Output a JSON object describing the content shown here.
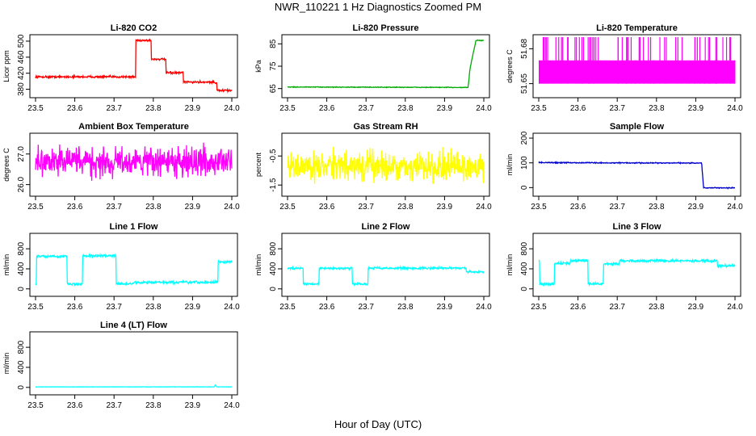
{
  "figure": {
    "title": "NWR_110221  1 Hz Diagnostics Zoomed PM",
    "xlabel": "Hour of Day (UTC)"
  },
  "chart_data": [
    {
      "type": "line",
      "title": "Li-820 CO2",
      "ylabel": "Licor ppm",
      "color": "#ff0000",
      "xlim": [
        23.5,
        24.0
      ],
      "ylim": [
        365,
        510
      ],
      "xticks": [
        "23.5",
        "23.6",
        "23.7",
        "23.8",
        "23.9",
        "24.0"
      ],
      "yticks": [
        {
          "v": 380,
          "t": "380"
        },
        {
          "v": 420,
          "t": "420"
        },
        {
          "v": 460,
          "t": "460"
        },
        {
          "v": 500,
          "t": "500"
        }
      ],
      "series": [
        {
          "x": [
            23.5,
            23.755,
            23.755,
            23.795,
            23.795,
            23.832,
            23.832,
            23.876,
            23.876,
            23.955,
            23.955,
            23.962,
            23.962,
            24.0
          ],
          "y": [
            411,
            411,
            502,
            502,
            455,
            455,
            421,
            421,
            398,
            398,
            396,
            396,
            377,
            377
          ]
        }
      ],
      "noise": 1.5
    },
    {
      "type": "line",
      "title": "Li-820 Pressure",
      "ylabel": "kPa",
      "color": "#00aa00",
      "xlim": [
        23.5,
        24.0
      ],
      "ylim": [
        62,
        88
      ],
      "xticks": [
        "23.5",
        "23.6",
        "23.7",
        "23.8",
        "23.9",
        "24.0"
      ],
      "yticks": [
        {
          "v": 65,
          "t": "65"
        },
        {
          "v": 75,
          "t": "75"
        },
        {
          "v": 85,
          "t": "85"
        }
      ],
      "series": [
        {
          "x": [
            23.5,
            23.955,
            23.96,
            23.965,
            23.972,
            23.98,
            24.0
          ],
          "y": [
            65.7,
            65.5,
            65.5,
            74,
            80,
            86.5,
            86.5
          ]
        }
      ],
      "noise": 0.1
    },
    {
      "type": "line",
      "title": "Li-820 Temperature",
      "ylabel": "degrees C",
      "color": "#ff00ff",
      "xlim": [
        23.5,
        24.0
      ],
      "ylim": [
        51.64,
        51.69
      ],
      "xticks": [
        "23.5",
        "23.6",
        "23.7",
        "23.8",
        "23.9",
        "24.0"
      ],
      "yticks": [
        {
          "v": 51.65,
          "t": "51.65"
        },
        {
          "v": 51.68,
          "t": "51.68"
        }
      ],
      "series": [
        {
          "x": [
            23.5,
            24.0
          ],
          "y": [
            51.67,
            51.67
          ]
        }
      ],
      "binary": {
        "low": 51.65,
        "high": 51.67,
        "top": 51.69
      }
    },
    {
      "type": "line",
      "title": "Ambient Box Temperature",
      "ylabel": "degrees C",
      "color": "#ff00ff",
      "xlim": [
        23.5,
        24.0
      ],
      "ylim": [
        25.7,
        27.6
      ],
      "xticks": [
        "23.5",
        "23.6",
        "23.7",
        "23.8",
        "23.9",
        "24.0"
      ],
      "yticks": [
        {
          "v": 26.0,
          "t": "26.0"
        },
        {
          "v": 27.0,
          "t": "27.0"
        }
      ],
      "series": [
        {
          "x": [
            23.5,
            24.0
          ],
          "y": [
            26.75,
            26.75
          ]
        }
      ],
      "noise": 0.3
    },
    {
      "type": "line",
      "title": "Gas Stream RH",
      "ylabel": "percent",
      "color": "#ffff00",
      "xlim": [
        23.5,
        24.0
      ],
      "ylim": [
        -1.8,
        0.2
      ],
      "xticks": [
        "23.5",
        "23.6",
        "23.7",
        "23.8",
        "23.9",
        "24.0"
      ],
      "yticks": [
        {
          "v": -1.5,
          "t": "-1.5"
        },
        {
          "v": -0.5,
          "t": "-0.5"
        }
      ],
      "series": [
        {
          "x": [
            23.5,
            24.0
          ],
          "y": [
            -0.85,
            -0.85
          ]
        }
      ],
      "noise": 0.3
    },
    {
      "type": "line",
      "title": "Sample Flow",
      "ylabel": "ml/min",
      "color": "#0000cc",
      "xlim": [
        23.5,
        24.0
      ],
      "ylim": [
        -25,
        210
      ],
      "xticks": [
        "23.5",
        "23.6",
        "23.7",
        "23.8",
        "23.9",
        "24.0"
      ],
      "yticks": [
        {
          "v": 0,
          "t": "0"
        },
        {
          "v": 100,
          "t": "100"
        },
        {
          "v": 200,
          "t": "200"
        }
      ],
      "series": [
        {
          "x": [
            23.5,
            23.915,
            23.92,
            24.0
          ],
          "y": [
            101,
            99,
            -1,
            -1
          ]
        }
      ],
      "noise": 1.2
    },
    {
      "type": "line",
      "title": "Line 1 Flow",
      "ylabel": "ml/min",
      "color": "#00ffff",
      "xlim": [
        23.5,
        24.0
      ],
      "ylim": [
        -100,
        1060
      ],
      "xticks": [
        "23.5",
        "23.6",
        "23.7",
        "23.8",
        "23.9",
        "24.0"
      ],
      "yticks": [
        {
          "v": 0,
          "t": "0"
        },
        {
          "v": 400,
          "t": "400"
        },
        {
          "v": 800,
          "t": "800"
        }
      ],
      "series": [
        {
          "x": [
            23.5,
            23.502,
            23.502,
            23.58,
            23.58,
            23.62,
            23.62,
            23.705,
            23.705,
            23.75,
            23.75,
            23.955,
            23.955,
            23.965,
            23.965,
            24.0
          ],
          "y": [
            100,
            100,
            650,
            650,
            100,
            100,
            660,
            660,
            100,
            100,
            130,
            130,
            140,
            140,
            540,
            540
          ]
        }
      ],
      "noise": 15
    },
    {
      "type": "line",
      "title": "Line 2 Flow",
      "ylabel": "ml/min",
      "color": "#00ffff",
      "xlim": [
        23.5,
        24.0
      ],
      "ylim": [
        -100,
        1060
      ],
      "xticks": [
        "23.5",
        "23.6",
        "23.7",
        "23.8",
        "23.9",
        "24.0"
      ],
      "yticks": [
        {
          "v": 0,
          "t": "0"
        },
        {
          "v": 400,
          "t": "400"
        },
        {
          "v": 800,
          "t": "800"
        }
      ],
      "series": [
        {
          "x": [
            23.5,
            23.54,
            23.54,
            23.58,
            23.58,
            23.665,
            23.665,
            23.705,
            23.705,
            23.955,
            23.955,
            24.0
          ],
          "y": [
            410,
            410,
            100,
            100,
            410,
            410,
            100,
            100,
            415,
            415,
            340,
            340
          ]
        }
      ],
      "noise": 12
    },
    {
      "type": "line",
      "title": "Line 3 Flow",
      "ylabel": "ml/min",
      "color": "#00ffff",
      "xlim": [
        23.5,
        24.0
      ],
      "ylim": [
        -100,
        1060
      ],
      "xticks": [
        "23.5",
        "23.6",
        "23.7",
        "23.8",
        "23.9",
        "24.0"
      ],
      "yticks": [
        {
          "v": 0,
          "t": "0"
        },
        {
          "v": 400,
          "t": "400"
        },
        {
          "v": 800,
          "t": "800"
        }
      ],
      "series": [
        {
          "x": [
            23.5,
            23.502,
            23.502,
            23.54,
            23.54,
            23.58,
            23.58,
            23.625,
            23.625,
            23.665,
            23.665,
            23.705,
            23.705,
            23.955,
            23.955,
            24.0
          ],
          "y": [
            560,
            560,
            100,
            100,
            510,
            510,
            560,
            560,
            100,
            100,
            500,
            500,
            560,
            560,
            460,
            460
          ]
        }
      ],
      "noise": 15
    },
    {
      "type": "line",
      "title": "Line 4 (LT) Flow",
      "ylabel": "ml/min",
      "color": "#00ffff",
      "xlim": [
        23.5,
        24.0
      ],
      "ylim": [
        -100,
        1060
      ],
      "xticks": [
        "23.5",
        "23.6",
        "23.7",
        "23.8",
        "23.9",
        "24.0"
      ],
      "yticks": [
        {
          "v": 0,
          "t": "0"
        },
        {
          "v": 400,
          "t": "400"
        },
        {
          "v": 800,
          "t": "800"
        }
      ],
      "series": [
        {
          "x": [
            23.5,
            23.955,
            23.958,
            23.962,
            24.0
          ],
          "y": [
            10,
            10,
            50,
            10,
            10
          ]
        }
      ],
      "noise": 2
    }
  ]
}
